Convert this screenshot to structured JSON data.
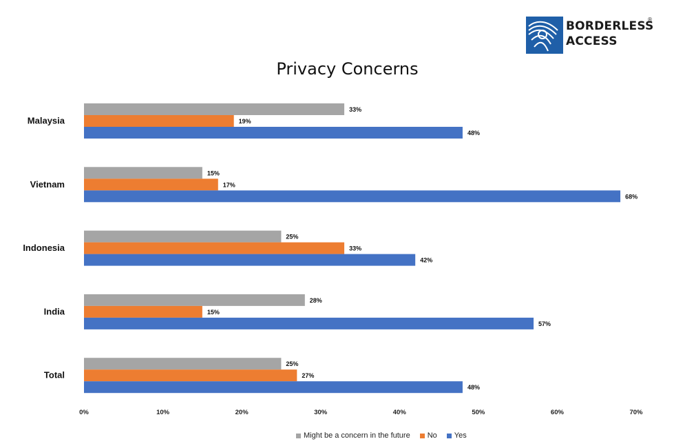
{
  "logo": {
    "line1": "BORDERLESS",
    "line2": "ACCESS",
    "reg": "®"
  },
  "chart_data": {
    "type": "bar",
    "orientation": "horizontal",
    "title": "Privacy Concerns",
    "categories": [
      "Malaysia",
      "Vietnam",
      "Indonesia",
      "India",
      "Total"
    ],
    "series": [
      {
        "name": "Might be a concern in the future",
        "color": "#a5a5a5",
        "values": [
          33,
          15,
          25,
          28,
          25
        ]
      },
      {
        "name": "No",
        "color": "#ed7d31",
        "values": [
          19,
          17,
          33,
          15,
          27
        ]
      },
      {
        "name": "Yes",
        "color": "#4472c4",
        "values": [
          48,
          68,
          42,
          57,
          48
        ]
      }
    ],
    "value_format": "percent",
    "xlim": [
      0,
      70
    ],
    "xticks": [
      "0%",
      "10%",
      "20%",
      "30%",
      "40%",
      "50%",
      "60%",
      "70%"
    ],
    "grid": false,
    "legend_position": "bottom"
  }
}
